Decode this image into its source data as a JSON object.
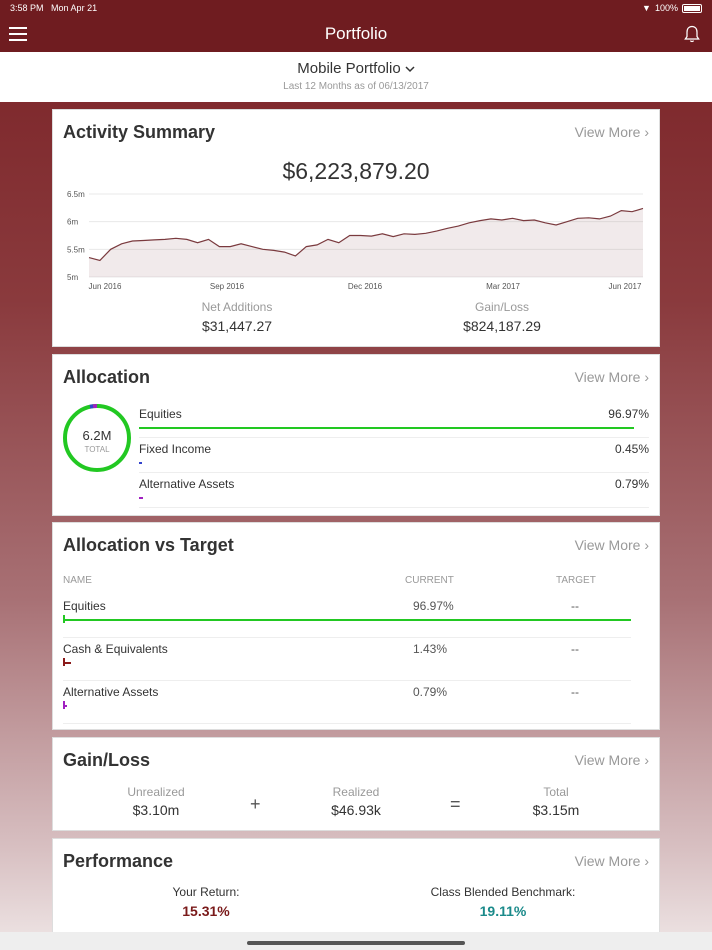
{
  "status": {
    "time": "3:58 PM",
    "date": "Mon Apr 21",
    "battery": "100%"
  },
  "nav": {
    "title": "Portfolio"
  },
  "subheader": {
    "portfolio_name": "Mobile Portfolio",
    "date_range": "Last 12 Months as of 06/13/2017"
  },
  "activity": {
    "title": "Activity Summary",
    "view_more": "View More ›",
    "total": "$6,223,879.20",
    "net_additions_label": "Net Additions",
    "net_additions": "$31,447.27",
    "gain_loss_label": "Gain/Loss",
    "gain_loss": "$824,187.29",
    "chart_data": {
      "type": "area",
      "ylim": [
        5.0,
        6.5
      ],
      "y_ticks": [
        "6.5m",
        "6m",
        "5.5m",
        "5m"
      ],
      "x_ticks": [
        "Jun 2016",
        "Sep 2016",
        "Dec 2016",
        "Mar 2017",
        "Jun 2017"
      ],
      "values": [
        5.35,
        5.3,
        5.5,
        5.6,
        5.65,
        5.66,
        5.67,
        5.68,
        5.7,
        5.68,
        5.62,
        5.68,
        5.55,
        5.55,
        5.6,
        5.55,
        5.5,
        5.48,
        5.45,
        5.38,
        5.55,
        5.58,
        5.68,
        5.62,
        5.75,
        5.75,
        5.74,
        5.78,
        5.73,
        5.78,
        5.77,
        5.79,
        5.83,
        5.88,
        5.92,
        5.98,
        6.02,
        6.05,
        6.03,
        6.06,
        6.02,
        6.03,
        5.98,
        5.94,
        6.0,
        6.06,
        6.07,
        6.05,
        6.1,
        6.2,
        6.18,
        6.24
      ]
    }
  },
  "allocation": {
    "title": "Allocation",
    "view_more": "View More ›",
    "total_amount": "6.2M",
    "total_label": "TOTAL",
    "items": [
      {
        "name": "Equities",
        "pct": "96.97%",
        "value": 96.97,
        "color": "#22c822"
      },
      {
        "name": "Fixed Income",
        "pct": "0.45%",
        "value": 0.45,
        "color": "#3344cc"
      },
      {
        "name": "Alternative Assets",
        "pct": "0.79%",
        "value": 0.79,
        "color": "#a020c0"
      }
    ]
  },
  "avt": {
    "title": "Allocation vs Target",
    "view_more": "View More ›",
    "headers": {
      "name": "NAME",
      "current": "CURRENT",
      "target": "TARGET"
    },
    "rows": [
      {
        "name": "Equities",
        "current": "96.97%",
        "target": "--",
        "value": 96.97,
        "color": "#22c822"
      },
      {
        "name": "Cash & Equivalents",
        "current": "1.43%",
        "target": "--",
        "value": 1.43,
        "color": "#8b1a1a"
      },
      {
        "name": "Alternative Assets",
        "current": "0.79%",
        "target": "--",
        "value": 0.79,
        "color": "#a020c0"
      }
    ]
  },
  "gainloss": {
    "title": "Gain/Loss",
    "view_more": "View More ›",
    "unrealized_label": "Unrealized",
    "unrealized": "$3.10m",
    "plus": "+",
    "realized_label": "Realized",
    "realized": "$46.93k",
    "equals": "=",
    "total_label": "Total",
    "total": "$3.15m"
  },
  "performance": {
    "title": "Performance",
    "view_more": "View More ›",
    "your_return_label": "Your Return:",
    "your_return": "15.31%",
    "benchmark_label": "Class Blended Benchmark:",
    "benchmark": "19.11%",
    "colors": {
      "return": "#7a1a1a",
      "benchmark": "#1a8a8a"
    }
  }
}
